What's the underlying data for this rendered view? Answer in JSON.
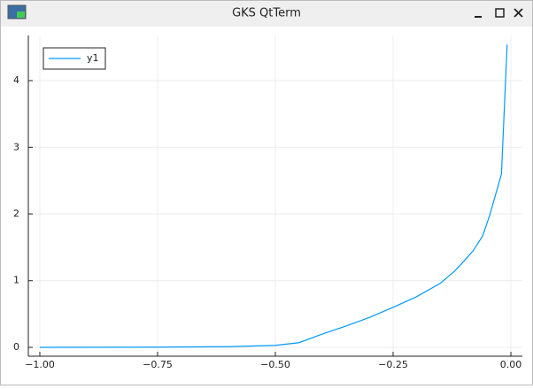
{
  "window": {
    "title": "GKS QtTerm"
  },
  "chart_data": {
    "type": "line",
    "x": [
      -1.0,
      -0.75,
      -0.6,
      -0.55,
      -0.5,
      -0.45,
      -0.4,
      -0.35,
      -0.3,
      -0.25,
      -0.2,
      -0.15,
      -0.12,
      -0.1,
      -0.08,
      -0.06,
      -0.045,
      -0.02,
      -0.008
    ],
    "series": [
      {
        "name": "y1",
        "color": "#009af9",
        "values": [
          0.0,
          0.003,
          0.01,
          0.02,
          0.03,
          0.07,
          0.2,
          0.32,
          0.45,
          0.6,
          0.76,
          0.96,
          1.14,
          1.29,
          1.45,
          1.67,
          1.98,
          2.6,
          4.54
        ]
      }
    ],
    "xlim": [
      -1.0244,
      0.0244
    ],
    "ylim": [
      -0.133,
      4.678
    ],
    "xticks": [
      {
        "value": -1,
        "label": "−1.00"
      },
      {
        "value": -0.75,
        "label": "−0.75"
      },
      {
        "value": -0.5,
        "label": "−0.50"
      },
      {
        "value": -0.25,
        "label": "−0.25"
      },
      {
        "value": 0,
        "label": "0.00"
      }
    ],
    "yticks": [
      0,
      1,
      2,
      3,
      4
    ],
    "grid": true,
    "legend": "top-left"
  }
}
